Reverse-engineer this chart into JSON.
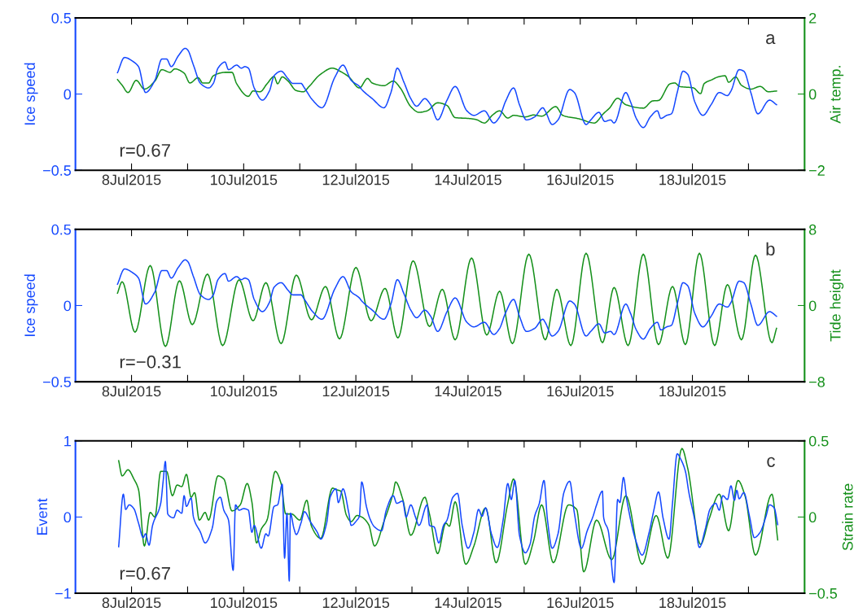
{
  "chart_data": [
    {
      "type": "line",
      "ylabel": "Ice speed",
      "y2label": "Air temp.",
      "annotations": [
        "a",
        "r=0.67"
      ],
      "xlim": [
        "2015-07-07",
        "2015-07-20"
      ],
      "xticks": [
        {
          "value": "2015-07-08",
          "label": "8Jul2015"
        },
        {
          "value": "2015-07-09",
          "label": null
        },
        {
          "value": "2015-07-10",
          "label": "10Jul2015"
        },
        {
          "value": "2015-07-11",
          "label": null
        },
        {
          "value": "2015-07-12",
          "label": "12Jul2015"
        },
        {
          "value": "2015-07-13",
          "label": null
        },
        {
          "value": "2015-07-14",
          "label": "14Jul2015"
        },
        {
          "value": "2015-07-15",
          "label": null
        },
        {
          "value": "2015-07-16",
          "label": "16Jul2015"
        },
        {
          "value": "2015-07-17",
          "label": null
        },
        {
          "value": "2015-07-18",
          "label": "18Jul2015"
        },
        {
          "value": "2015-07-19",
          "label": null
        }
      ],
      "ylim": [
        -0.5,
        0.5
      ],
      "yticks": [
        -0.5,
        0,
        0.5
      ],
      "y2lim": [
        -2,
        2
      ],
      "y2ticks": [
        -2,
        0,
        2
      ],
      "series": [
        {
          "color": "#1448ff",
          "x": [
            "2015-07-07T18:00",
            "2015-07-07T21:00",
            "2015-07-08T01:00",
            "2015-07-08T03:00",
            "2015-07-08T06:00",
            "2015-07-08T10:00",
            "2015-07-08T13:00",
            "2015-07-08T15:00",
            "2015-07-08T17:00",
            "2015-07-08T20:00",
            "2015-07-08T23:00",
            "2015-07-09T00:00",
            "2015-07-09T02:30",
            "2015-07-09T05:30",
            "2015-07-09T09:00",
            "2015-07-09T11:00",
            "2015-07-09T13:00",
            "2015-07-09T16:00",
            "2015-07-09T17:30",
            "2015-07-09T21:00",
            "2015-07-09T23:00",
            "2015-07-10T00:30",
            "2015-07-10T02:00",
            "2015-07-10T04:30",
            "2015-07-10T08:00",
            "2015-07-10T11:00",
            "2015-07-10T13:00",
            "2015-07-10T16:00",
            "2015-07-10T19:00",
            "2015-07-10T21:00",
            "2015-07-11T00:30",
            "2015-07-11T02:00",
            "2015-07-11T05:30",
            "2015-07-11T09:30",
            "2015-07-11T15:00",
            "2015-07-11T18:30",
            "2015-07-11T22:00",
            "2015-07-12T01:30",
            "2015-07-12T02:30",
            "2015-07-12T07:00",
            "2015-07-12T12:00",
            "2015-07-12T15:00",
            "2015-07-12T17:45",
            "2015-07-12T20:30",
            "2015-07-12T23:30",
            "2015-07-13T02:00",
            "2015-07-13T05:30",
            "2015-07-13T08:00",
            "2015-07-13T11:00",
            "2015-07-13T15:00",
            "2015-07-13T18:30",
            "2015-07-13T23:30",
            "2015-07-14T02:30",
            "2015-07-14T07:00",
            "2015-07-14T11:00",
            "2015-07-14T13:30",
            "2015-07-14T16:00",
            "2015-07-14T19:30",
            "2015-07-14T22:00",
            "2015-07-15T01:00",
            "2015-07-15T04:30",
            "2015-07-15T08:00",
            "2015-07-15T09:00",
            "2015-07-15T12:00",
            "2015-07-15T14:30",
            "2015-07-15T19:30",
            "2015-07-15T21:30",
            "2015-07-16T02:30",
            "2015-07-16T04:30",
            "2015-07-16T08:00",
            "2015-07-16T10:30",
            "2015-07-16T13:00",
            "2015-07-16T14:30",
            "2015-07-16T19:30",
            "2015-07-16T21:30",
            "2015-07-17T00:00",
            "2015-07-17T03:00",
            "2015-07-17T06:00",
            "2015-07-17T09:00",
            "2015-07-17T10:30",
            "2015-07-17T13:00",
            "2015-07-17T15:00",
            "2015-07-17T17:30",
            "2015-07-17T20:00",
            "2015-07-17T22:00",
            "2015-07-18T01:00",
            "2015-07-18T04:30",
            "2015-07-18T08:00",
            "2015-07-18T11:30",
            "2015-07-18T15:00",
            "2015-07-18T16:30",
            "2015-07-18T20:00",
            "2015-07-18T22:00",
            "2015-07-19T01:00",
            "2015-07-19T04:00",
            "2015-07-19T09:00",
            "2015-07-19T12:00"
          ],
          "values": [
            0.14,
            0.24,
            0.21,
            0.18,
            0.01,
            0.09,
            0.23,
            0.23,
            0.18,
            0.25,
            0.3,
            0.29,
            0.19,
            0.07,
            0.04,
            0.07,
            0.17,
            0.21,
            0.16,
            0.19,
            0.17,
            0.18,
            0.17,
            0.04,
            -0.04,
            0.02,
            0.12,
            0.15,
            0.1,
            0.07,
            0.07,
            0.04,
            -0.04,
            -0.09,
            0.11,
            0.19,
            0.09,
            0.05,
            0.03,
            -0.03,
            -0.09,
            0.01,
            0.17,
            0.08,
            -0.03,
            -0.08,
            -0.03,
            -0.07,
            -0.17,
            -0.04,
            0.05,
            -0.11,
            -0.14,
            -0.11,
            -0.19,
            -0.15,
            -0.05,
            0.04,
            -0.07,
            -0.17,
            -0.15,
            -0.09,
            -0.11,
            -0.2,
            -0.17,
            0.03,
            0.01,
            -0.2,
            -0.17,
            -0.12,
            -0.18,
            -0.17,
            -0.19,
            0.01,
            -0.05,
            -0.16,
            -0.22,
            -0.15,
            -0.11,
            -0.16,
            -0.14,
            -0.13,
            0.01,
            0.15,
            0.13,
            -0.05,
            -0.14,
            -0.07,
            0.01,
            -0.01,
            0.02,
            0.16,
            0.15,
            0.01,
            -0.13,
            -0.04,
            -0.07
          ]
        },
        {
          "color": "#14901a",
          "axis": "y2",
          "x": [
            "2015-07-07T18:00",
            "2015-07-07T20:00",
            "2015-07-07T22:30",
            "2015-07-08T02:00",
            "2015-07-08T05:30",
            "2015-07-08T10:00",
            "2015-07-08T13:00",
            "2015-07-08T16:30",
            "2015-07-08T18:30",
            "2015-07-08T22:30",
            "2015-07-09T01:00",
            "2015-07-09T04:30",
            "2015-07-09T06:30",
            "2015-07-09T09:00",
            "2015-07-09T11:00",
            "2015-07-09T16:00",
            "2015-07-09T19:00",
            "2015-07-09T21:00",
            "2015-07-10T02:00",
            "2015-07-10T04:00",
            "2015-07-10T07:00",
            "2015-07-10T10:00",
            "2015-07-10T13:00",
            "2015-07-10T14:30",
            "2015-07-10T16:30",
            "2015-07-10T19:00",
            "2015-07-10T22:30",
            "2015-07-11T01:30",
            "2015-07-11T04:00",
            "2015-07-11T08:30",
            "2015-07-11T14:00",
            "2015-07-11T17:30",
            "2015-07-11T21:00",
            "2015-07-12T01:30",
            "2015-07-12T05:00",
            "2015-07-12T07:00",
            "2015-07-12T12:00",
            "2015-07-12T16:00",
            "2015-07-12T19:00",
            "2015-07-12T23:30",
            "2015-07-13T03:00",
            "2015-07-13T06:30",
            "2015-07-13T11:00",
            "2015-07-13T15:00",
            "2015-07-13T18:30",
            "2015-07-14T00:00",
            "2015-07-14T03:30",
            "2015-07-14T07:00",
            "2015-07-14T10:30",
            "2015-07-14T13:30",
            "2015-07-14T17:00",
            "2015-07-14T19:30",
            "2015-07-15T00:30",
            "2015-07-15T04:00",
            "2015-07-15T07:30",
            "2015-07-15T13:30",
            "2015-07-15T16:30",
            "2015-07-15T23:30",
            "2015-07-16T06:00",
            "2015-07-16T10:00",
            "2015-07-16T12:30",
            "2015-07-16T16:00",
            "2015-07-16T19:30",
            "2015-07-17T03:00",
            "2015-07-17T07:00",
            "2015-07-17T09:30",
            "2015-07-17T14:30",
            "2015-07-17T16:30",
            "2015-07-17T18:30",
            "2015-07-18T00:30",
            "2015-07-18T03:30",
            "2015-07-18T05:00",
            "2015-07-18T08:30",
            "2015-07-18T11:00",
            "2015-07-18T14:00",
            "2015-07-18T15:30",
            "2015-07-18T18:30",
            "2015-07-18T21:00",
            "2015-07-19T01:00",
            "2015-07-19T05:00",
            "2015-07-19T08:30",
            "2015-07-19T12:00"
          ],
          "values": [
            0.38,
            0.23,
            0.04,
            0.36,
            0.13,
            0.34,
            0.64,
            0.57,
            0.66,
            0.55,
            0.29,
            0.43,
            0.29,
            0.29,
            0.48,
            0.57,
            0.57,
            0.27,
            -0.06,
            0.08,
            0.06,
            0.27,
            0.46,
            0.27,
            0.45,
            0.34,
            0.09,
            0.06,
            0.2,
            0.5,
            0.68,
            0.59,
            0.45,
            0.16,
            0.41,
            0.29,
            0.22,
            0.34,
            0.16,
            -0.33,
            -0.48,
            -0.44,
            -0.23,
            -0.3,
            -0.62,
            -0.64,
            -0.67,
            -0.76,
            -0.55,
            -0.44,
            -0.63,
            -0.56,
            -0.6,
            -0.55,
            -0.58,
            -0.33,
            -0.56,
            -0.65,
            -0.76,
            -0.51,
            -0.37,
            -0.11,
            -0.28,
            -0.37,
            -0.18,
            -0.17,
            0.27,
            0.29,
            0.2,
            0.16,
            0.01,
            0.27,
            0.38,
            0.45,
            0.48,
            0.31,
            0.45,
            0.23,
            0.13,
            0.2,
            0.06,
            0.08
          ]
        }
      ]
    },
    {
      "type": "line",
      "ylabel": "Ice speed",
      "y2label": "Tide height",
      "annotations": [
        "b",
        "r=−0.31"
      ],
      "xlim": [
        "2015-07-07",
        "2015-07-20"
      ],
      "xticks": [
        {
          "value": "2015-07-08",
          "label": "8Jul2015"
        },
        {
          "value": "2015-07-09",
          "label": null
        },
        {
          "value": "2015-07-10",
          "label": "10Jul2015"
        },
        {
          "value": "2015-07-11",
          "label": null
        },
        {
          "value": "2015-07-12",
          "label": "12Jul2015"
        },
        {
          "value": "2015-07-13",
          "label": null
        },
        {
          "value": "2015-07-14",
          "label": "14Jul2015"
        },
        {
          "value": "2015-07-15",
          "label": null
        },
        {
          "value": "2015-07-16",
          "label": "16Jul2015"
        },
        {
          "value": "2015-07-17",
          "label": null
        },
        {
          "value": "2015-07-18",
          "label": "18Jul2015"
        },
        {
          "value": "2015-07-19",
          "label": null
        }
      ],
      "ylim": [
        -0.5,
        0.5
      ],
      "yticks": [
        -0.5,
        0,
        0.5
      ],
      "y2lim": [
        -8,
        8
      ],
      "y2ticks": [
        -8,
        0,
        8
      ],
      "series": [
        {
          "color": "#1448ff",
          "x": [
            "2015-07-07T18:00",
            "2015-07-07T21:00",
            "2015-07-08T01:00",
            "2015-07-08T03:00",
            "2015-07-08T06:00",
            "2015-07-08T10:00",
            "2015-07-08T13:00",
            "2015-07-08T15:00",
            "2015-07-08T17:00",
            "2015-07-08T20:00",
            "2015-07-08T23:00",
            "2015-07-09T00:00",
            "2015-07-09T02:30",
            "2015-07-09T05:30",
            "2015-07-09T09:00",
            "2015-07-09T11:00",
            "2015-07-09T13:00",
            "2015-07-09T16:00",
            "2015-07-09T17:30",
            "2015-07-09T21:00",
            "2015-07-09T23:00",
            "2015-07-10T00:30",
            "2015-07-10T02:00",
            "2015-07-10T04:30",
            "2015-07-10T08:00",
            "2015-07-10T11:00",
            "2015-07-10T13:00",
            "2015-07-10T16:00",
            "2015-07-10T19:00",
            "2015-07-10T21:00",
            "2015-07-11T00:30",
            "2015-07-11T02:00",
            "2015-07-11T05:30",
            "2015-07-11T09:30",
            "2015-07-11T15:00",
            "2015-07-11T18:30",
            "2015-07-11T22:00",
            "2015-07-12T01:30",
            "2015-07-12T02:30",
            "2015-07-12T07:00",
            "2015-07-12T12:00",
            "2015-07-12T15:00",
            "2015-07-12T17:45",
            "2015-07-12T20:30",
            "2015-07-12T23:30",
            "2015-07-13T02:00",
            "2015-07-13T05:30",
            "2015-07-13T08:00",
            "2015-07-13T11:00",
            "2015-07-13T15:00",
            "2015-07-13T18:30",
            "2015-07-13T23:30",
            "2015-07-14T02:30",
            "2015-07-14T07:00",
            "2015-07-14T11:00",
            "2015-07-14T13:30",
            "2015-07-14T16:00",
            "2015-07-14T19:30",
            "2015-07-14T22:00",
            "2015-07-15T01:00",
            "2015-07-15T04:30",
            "2015-07-15T08:00",
            "2015-07-15T09:00",
            "2015-07-15T12:00",
            "2015-07-15T14:30",
            "2015-07-15T19:30",
            "2015-07-15T21:30",
            "2015-07-16T02:30",
            "2015-07-16T04:30",
            "2015-07-16T08:00",
            "2015-07-16T10:30",
            "2015-07-16T13:00",
            "2015-07-16T14:30",
            "2015-07-16T19:30",
            "2015-07-16T21:30",
            "2015-07-17T00:00",
            "2015-07-17T03:00",
            "2015-07-17T06:00",
            "2015-07-17T09:00",
            "2015-07-17T10:30",
            "2015-07-17T13:00",
            "2015-07-17T15:00",
            "2015-07-17T17:30",
            "2015-07-17T20:00",
            "2015-07-17T22:00",
            "2015-07-18T01:00",
            "2015-07-18T04:30",
            "2015-07-18T08:00",
            "2015-07-18T11:30",
            "2015-07-18T15:00",
            "2015-07-18T16:30",
            "2015-07-18T20:00",
            "2015-07-18T22:00",
            "2015-07-19T01:00",
            "2015-07-19T04:00",
            "2015-07-19T09:00",
            "2015-07-19T12:00"
          ],
          "values": [
            0.14,
            0.24,
            0.21,
            0.18,
            0.01,
            0.09,
            0.23,
            0.23,
            0.18,
            0.25,
            0.3,
            0.29,
            0.19,
            0.07,
            0.04,
            0.07,
            0.17,
            0.21,
            0.16,
            0.19,
            0.17,
            0.18,
            0.17,
            0.04,
            -0.04,
            0.02,
            0.12,
            0.15,
            0.1,
            0.07,
            0.07,
            0.04,
            -0.04,
            -0.09,
            0.11,
            0.19,
            0.09,
            0.05,
            0.03,
            -0.03,
            -0.09,
            0.01,
            0.17,
            0.08,
            -0.03,
            -0.08,
            -0.03,
            -0.07,
            -0.17,
            -0.04,
            0.05,
            -0.11,
            -0.14,
            -0.11,
            -0.19,
            -0.15,
            -0.05,
            0.04,
            -0.07,
            -0.17,
            -0.15,
            -0.09,
            -0.11,
            -0.2,
            -0.17,
            0.03,
            0.01,
            -0.2,
            -0.17,
            -0.12,
            -0.18,
            -0.17,
            -0.19,
            0.01,
            -0.05,
            -0.16,
            -0.22,
            -0.15,
            -0.11,
            -0.16,
            -0.14,
            -0.13,
            0.01,
            0.15,
            0.13,
            -0.05,
            -0.14,
            -0.07,
            0.01,
            -0.01,
            0.02,
            0.16,
            0.15,
            0.01,
            -0.13,
            -0.04,
            -0.07
          ]
        },
        {
          "color": "#14901a",
          "axis": "y2",
          "x": [
            "2015-07-07T18:00",
            "2015-07-07T20:00",
            "2015-07-08T01:30",
            "2015-07-08T08:00",
            "2015-07-08T14:30",
            "2015-07-08T20:30",
            "2015-07-09T02:00",
            "2015-07-09T08:30",
            "2015-07-09T15:00",
            "2015-07-09T22:00",
            "2015-07-10T04:00",
            "2015-07-10T09:30",
            "2015-07-10T16:00",
            "2015-07-10T22:30",
            "2015-07-11T05:00",
            "2015-07-11T11:00",
            "2015-07-11T17:00",
            "2015-07-12T00:00",
            "2015-07-12T06:30",
            "2015-07-12T12:30",
            "2015-07-12T18:00",
            "2015-07-13T00:30",
            "2015-07-13T07:30",
            "2015-07-13T13:00",
            "2015-07-13T18:30",
            "2015-07-14T01:30",
            "2015-07-14T08:00",
            "2015-07-14T13:30",
            "2015-07-14T19:00",
            "2015-07-15T02:00",
            "2015-07-15T09:00",
            "2015-07-15T14:00",
            "2015-07-15T20:00",
            "2015-07-16T02:30",
            "2015-07-16T09:30",
            "2015-07-16T14:30",
            "2015-07-16T20:30",
            "2015-07-17T03:00",
            "2015-07-17T09:30",
            "2015-07-17T15:30",
            "2015-07-17T21:00",
            "2015-07-18T03:00",
            "2015-07-18T09:30",
            "2015-07-18T15:00",
            "2015-07-18T21:00",
            "2015-07-19T03:00",
            "2015-07-19T10:00",
            "2015-07-19T12:00"
          ],
          "values": [
            1.3,
            2.5,
            -2.8,
            4.2,
            -4.3,
            2.6,
            -2.0,
            3.3,
            -4.2,
            2.7,
            -1.6,
            2.4,
            -4.0,
            3.2,
            -1.5,
            2.0,
            -3.5,
            4.0,
            -1.6,
            1.8,
            -3.4,
            4.7,
            -2.2,
            1.7,
            -3.6,
            5.0,
            -3.1,
            1.5,
            -4.0,
            5.4,
            -3.6,
            1.7,
            -4.2,
            5.5,
            -3.9,
            1.9,
            -4.2,
            5.4,
            -4.1,
            2.0,
            -4.1,
            5.5,
            -4.2,
            2.2,
            -3.6,
            5.3,
            -3.9,
            -2.4
          ]
        }
      ]
    },
    {
      "type": "line",
      "ylabel": "Event",
      "y2label": "Strain rate",
      "annotations": [
        "c",
        "r=0.67"
      ],
      "xlim": [
        "2015-07-07",
        "2015-07-20"
      ],
      "xticks": [
        {
          "value": "2015-07-08",
          "label": "8Jul2015"
        },
        {
          "value": "2015-07-09",
          "label": null
        },
        {
          "value": "2015-07-10",
          "label": "10Jul2015"
        },
        {
          "value": "2015-07-11",
          "label": null
        },
        {
          "value": "2015-07-12",
          "label": "12Jul2015"
        },
        {
          "value": "2015-07-13",
          "label": null
        },
        {
          "value": "2015-07-14",
          "label": "14Jul2015"
        },
        {
          "value": "2015-07-15",
          "label": null
        },
        {
          "value": "2015-07-16",
          "label": "16Jul2015"
        },
        {
          "value": "2015-07-17",
          "label": null
        },
        {
          "value": "2015-07-18",
          "label": "18Jul2015"
        },
        {
          "value": "2015-07-19",
          "label": null
        }
      ],
      "ylim": [
        -1,
        1
      ],
      "yticks": [
        -1,
        0,
        1
      ],
      "y2lim": [
        -0.5,
        0.5
      ],
      "y2ticks": [
        -0.5,
        0,
        0.5
      ],
      "series": [
        {
          "color": "#1448ff",
          "x": [
            "2015-07-07T18:30",
            "2015-07-07T20:30",
            "2015-07-07T21:30",
            "2015-07-07T23:00",
            "2015-07-08T01:00",
            "2015-07-08T03:00",
            "2015-07-08T05:00",
            "2015-07-08T06:00",
            "2015-07-08T07:30",
            "2015-07-08T09:00",
            "2015-07-08T12:30",
            "2015-07-08T13:30",
            "2015-07-08T14:30",
            "2015-07-08T15:30",
            "2015-07-08T18:00",
            "2015-07-08T19:30",
            "2015-07-08T21:30",
            "2015-07-08T22:30",
            "2015-07-08T23:30",
            "2015-07-09T01:30",
            "2015-07-09T02:30",
            "2015-07-09T05:30",
            "2015-07-09T07:30",
            "2015-07-09T10:30",
            "2015-07-09T12:30",
            "2015-07-09T14:00",
            "2015-07-09T15:30",
            "2015-07-09T17:30",
            "2015-07-09T19:30",
            "2015-07-09T20:30",
            "2015-07-09T22:00",
            "2015-07-10T00:00",
            "2015-07-10T02:00",
            "2015-07-10T03:30",
            "2015-07-10T04:30",
            "2015-07-10T07:30",
            "2015-07-10T09:30",
            "2015-07-10T10:30",
            "2015-07-10T13:00",
            "2015-07-10T14:30",
            "2015-07-10T16:30",
            "2015-07-10T17:30",
            "2015-07-10T18:30",
            "2015-07-10T19:30",
            "2015-07-10T20:00",
            "2015-07-10T21:30",
            "2015-07-10T22:30",
            "2015-07-11T00:30",
            "2015-07-11T02:00",
            "2015-07-11T04:30",
            "2015-07-11T07:30",
            "2015-07-11T09:00",
            "2015-07-11T11:30",
            "2015-07-11T13:00",
            "2015-07-11T15:30",
            "2015-07-11T16:30",
            "2015-07-11T18:30",
            "2015-07-11T21:00",
            "2015-07-11T22:00",
            "2015-07-12T00:30",
            "2015-07-12T01:30",
            "2015-07-12T02:30",
            "2015-07-12T04:30",
            "2015-07-12T06:00",
            "2015-07-12T08:00",
            "2015-07-12T11:00",
            "2015-07-12T13:00",
            "2015-07-12T16:00",
            "2015-07-12T17:30",
            "2015-07-12T20:00",
            "2015-07-12T21:30",
            "2015-07-12T23:30",
            "2015-07-13T01:30",
            "2015-07-13T03:00",
            "2015-07-13T06:30",
            "2015-07-13T07:30",
            "2015-07-13T09:30",
            "2015-07-13T11:30",
            "2015-07-13T13:30",
            "2015-07-13T15:00",
            "2015-07-13T17:30",
            "2015-07-13T19:30",
            "2015-07-13T21:30",
            "2015-07-14T00:00",
            "2015-07-14T02:30",
            "2015-07-14T04:30",
            "2015-07-14T06:00",
            "2015-07-14T07:30",
            "2015-07-14T10:00",
            "2015-07-14T12:30",
            "2015-07-14T15:00",
            "2015-07-14T17:00",
            "2015-07-14T18:30",
            "2015-07-14T20:00",
            "2015-07-14T22:00",
            "2015-07-15T00:30",
            "2015-07-15T02:30",
            "2015-07-15T04:30",
            "2015-07-15T06:30",
            "2015-07-15T08:30",
            "2015-07-15T10:00",
            "2015-07-15T12:00",
            "2015-07-15T14:30",
            "2015-07-15T17:00",
            "2015-07-15T19:30",
            "2015-07-15T21:30",
            "2015-07-16T00:30",
            "2015-07-16T03:00",
            "2015-07-16T05:30",
            "2015-07-16T07:00",
            "2015-07-16T09:30",
            "2015-07-16T10:00",
            "2015-07-16T12:00",
            "2015-07-16T14:30",
            "2015-07-16T16:00",
            "2015-07-16T17:00",
            "2015-07-16T18:30",
            "2015-07-16T20:00",
            "2015-07-17T00:00",
            "2015-07-17T02:30",
            "2015-07-17T05:30",
            "2015-07-17T07:30",
            "2015-07-17T09:30",
            "2015-07-17T11:30",
            "2015-07-17T14:00",
            "2015-07-17T15:30",
            "2015-07-17T17:30",
            "2015-07-17T19:00",
            "2015-07-17T21:00",
            "2015-07-17T22:30",
            "2015-07-18T01:00",
            "2015-07-18T03:00",
            "2015-07-18T05:30",
            "2015-07-18T07:30",
            "2015-07-18T10:00",
            "2015-07-18T11:30",
            "2015-07-18T13:00",
            "2015-07-18T15:00",
            "2015-07-18T16:30",
            "2015-07-18T18:00",
            "2015-07-18T19:00",
            "2015-07-18T20:00",
            "2015-07-18T22:00",
            "2015-07-19T00:30",
            "2015-07-19T02:30",
            "2015-07-19T05:00",
            "2015-07-19T07:30",
            "2015-07-19T09:00",
            "2015-07-19T11:00",
            "2015-07-19T12:30"
          ],
          "values": [
            -0.39,
            0.3,
            0.1,
            0.16,
            0.11,
            -0.08,
            -0.27,
            -0.22,
            -0.37,
            -0.11,
            0.18,
            0.46,
            0.73,
            0.04,
            -0.01,
            0.09,
            0.05,
            0.28,
            0.14,
            0.25,
            0.0,
            -0.2,
            -0.34,
            -0.15,
            0.21,
            0.26,
            0.09,
            -0.04,
            -0.7,
            0.16,
            0.09,
            0.11,
            0.09,
            -0.2,
            -0.11,
            -0.41,
            -0.22,
            -0.25,
            0.14,
            0.16,
            0.43,
            -0.54,
            0.05,
            -0.84,
            0.05,
            -0.15,
            -0.23,
            -0.08,
            0.07,
            -0.06,
            -0.2,
            -0.29,
            -0.08,
            0.26,
            0.37,
            0.19,
            0.37,
            0.05,
            -0.11,
            -0.04,
            0.01,
            0.46,
            0.14,
            -0.02,
            -0.13,
            -0.18,
            0.09,
            0.28,
            0.18,
            0.21,
            0.0,
            0.16,
            0.0,
            -0.11,
            0.16,
            -0.11,
            -0.13,
            -0.34,
            -0.11,
            -0.04,
            0.26,
            0.31,
            -0.11,
            -0.41,
            -0.2,
            0.1,
            0.01,
            0.12,
            -0.22,
            -0.4,
            -0.04,
            0.44,
            0.23,
            0.48,
            -0.24,
            -0.47,
            -0.36,
            0.01,
            0.18,
            0.48,
            -0.04,
            -0.41,
            -0.22,
            0.32,
            0.47,
            0.05,
            -0.41,
            -0.18,
            0.01,
            0.16,
            0.34,
            0.0,
            -0.18,
            -0.86,
            0.23,
            0.19,
            0.52,
            0.21,
            -0.33,
            -0.5,
            -0.2,
            0.09,
            0.33,
            -0.02,
            -0.29,
            0.19,
            0.83,
            0.76,
            0.6,
            0.32,
            -0.04,
            -0.4,
            -0.16,
            0.1,
            0.18,
            0.09,
            0.28,
            0.23,
            0.41,
            0.22,
            0.35,
            0.24,
            0.32,
            0.0,
            -0.27,
            -0.2,
            0.01,
            0.16,
            0.12,
            -0.1
          ]
        },
        {
          "color": "#14901a",
          "axis": "y2",
          "x": [
            "2015-07-07T18:30",
            "2015-07-07T20:00",
            "2015-07-07T22:30",
            "2015-07-08T01:00",
            "2015-07-08T03:00",
            "2015-07-08T05:30",
            "2015-07-08T08:00",
            "2015-07-08T10:00",
            "2015-07-08T12:30",
            "2015-07-08T15:00",
            "2015-07-08T17:30",
            "2015-07-08T19:30",
            "2015-07-08T21:30",
            "2015-07-08T23:30",
            "2015-07-09T01:30",
            "2015-07-09T03:00",
            "2015-07-09T05:00",
            "2015-07-09T07:30",
            "2015-07-09T09:00",
            "2015-07-09T13:00",
            "2015-07-09T15:30",
            "2015-07-09T19:00",
            "2015-07-09T22:30",
            "2015-07-10T01:30",
            "2015-07-10T03:30",
            "2015-07-10T05:30",
            "2015-07-10T07:30",
            "2015-07-10T10:00",
            "2015-07-10T13:30",
            "2015-07-10T16:00",
            "2015-07-10T18:00",
            "2015-07-10T20:30",
            "2015-07-11T00:00",
            "2015-07-11T03:00",
            "2015-07-11T05:00",
            "2015-07-11T09:00",
            "2015-07-11T14:00",
            "2015-07-11T15:30",
            "2015-07-11T17:30",
            "2015-07-11T20:00",
            "2015-07-11T22:00",
            "2015-07-12T00:30",
            "2015-07-12T02:30",
            "2015-07-12T05:30",
            "2015-07-12T08:00",
            "2015-07-12T12:00",
            "2015-07-12T16:00",
            "2015-07-12T17:00",
            "2015-07-12T20:00",
            "2015-07-12T23:30",
            "2015-07-13T05:30",
            "2015-07-13T07:30",
            "2015-07-13T11:00",
            "2015-07-13T14:30",
            "2015-07-13T16:00",
            "2015-07-13T18:30",
            "2015-07-13T23:00",
            "2015-07-14T02:30",
            "2015-07-14T07:30",
            "2015-07-14T12:00",
            "2015-07-14T17:00",
            "2015-07-14T19:30",
            "2015-07-15T00:30",
            "2015-07-15T04:00",
            "2015-07-15T07:30",
            "2015-07-15T12:30",
            "2015-07-15T19:00",
            "2015-07-15T22:30",
            "2015-07-16T01:30",
            "2015-07-16T07:00",
            "2015-07-16T13:30",
            "2015-07-16T19:30",
            "2015-07-17T02:30",
            "2015-07-17T08:30",
            "2015-07-17T13:30",
            "2015-07-17T19:30",
            "2015-07-17T22:00",
            "2015-07-18T03:30",
            "2015-07-18T07:00",
            "2015-07-18T11:30",
            "2015-07-18T15:30",
            "2015-07-18T19:30",
            "2015-07-18T22:30",
            "2015-07-19T03:00",
            "2015-07-19T10:00",
            "2015-07-19T12:30"
          ],
          "values": [
            0.37,
            0.27,
            0.31,
            0.25,
            0.18,
            -0.19,
            0.03,
            0.0,
            0.3,
            0.3,
            0.14,
            0.21,
            0.2,
            0.28,
            0.13,
            0.16,
            -0.02,
            0.03,
            -0.02,
            0.27,
            0.25,
            0.04,
            0.08,
            0.22,
            0.1,
            -0.17,
            -0.08,
            -0.02,
            0.3,
            0.22,
            0.02,
            0.02,
            -0.02,
            0.11,
            -0.06,
            -0.14,
            0.19,
            0.18,
            0.17,
            0.01,
            -0.03,
            0.01,
            0.0,
            -0.05,
            -0.19,
            -0.03,
            0.16,
            0.23,
            0.12,
            -0.12,
            0.13,
            0.02,
            -0.24,
            -0.04,
            -0.06,
            0.1,
            -0.31,
            -0.19,
            0.06,
            -0.3,
            0.09,
            0.25,
            -0.31,
            -0.16,
            0.08,
            -0.3,
            0.08,
            0.05,
            -0.36,
            -0.02,
            -0.28,
            0.14,
            -0.31,
            0.01,
            -0.27,
            0.45,
            0.32,
            -0.18,
            -0.02,
            0.15,
            -0.09,
            0.24,
            0.14,
            -0.25,
            0.15,
            -0.15
          ]
        }
      ]
    }
  ]
}
